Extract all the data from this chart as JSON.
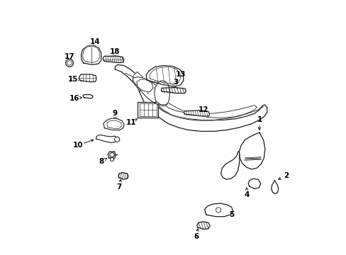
{
  "bg_color": "#ffffff",
  "line_color": "#1a1a1a",
  "label_color": "#000000",
  "figsize": [
    4.89,
    3.6
  ],
  "dpi": 100,
  "arrow_targets": {
    "1": [
      0.84,
      0.53,
      0.84,
      0.48
    ],
    "2": [
      0.945,
      0.31,
      0.905,
      0.29
    ],
    "3": [
      0.51,
      0.68,
      0.49,
      0.655
    ],
    "4": [
      0.79,
      0.235,
      0.79,
      0.265
    ],
    "5": [
      0.73,
      0.155,
      0.7,
      0.175
    ],
    "6": [
      0.59,
      0.07,
      0.6,
      0.11
    ],
    "7": [
      0.285,
      0.265,
      0.295,
      0.305
    ],
    "8": [
      0.215,
      0.365,
      0.24,
      0.38
    ],
    "9": [
      0.27,
      0.555,
      0.27,
      0.53
    ],
    "10": [
      0.125,
      0.43,
      0.195,
      0.455
    ],
    "11": [
      0.335,
      0.52,
      0.365,
      0.54
    ],
    "12": [
      0.62,
      0.57,
      0.58,
      0.555
    ],
    "13": [
      0.53,
      0.71,
      0.49,
      0.72
    ],
    "14": [
      0.19,
      0.84,
      0.185,
      0.81
    ],
    "15": [
      0.105,
      0.69,
      0.145,
      0.69
    ],
    "16": [
      0.11,
      0.615,
      0.15,
      0.62
    ],
    "17": [
      0.09,
      0.78,
      0.09,
      0.755
    ],
    "18": [
      0.27,
      0.8,
      0.265,
      0.775
    ]
  }
}
